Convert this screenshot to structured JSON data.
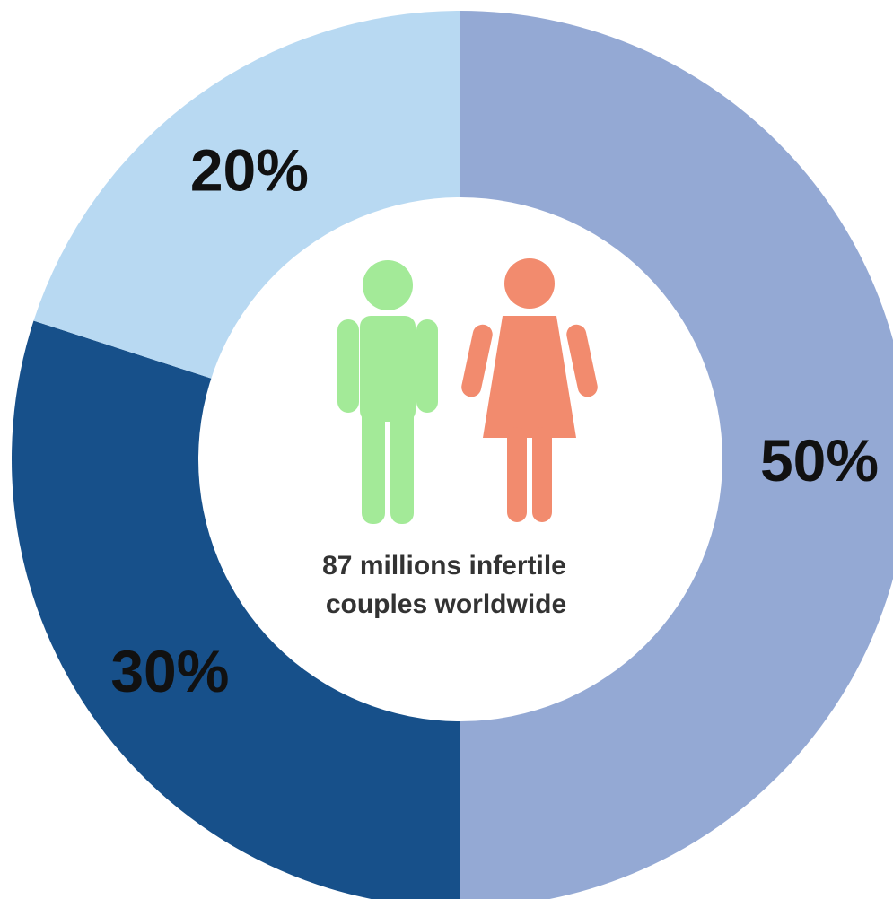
{
  "chart_data": {
    "type": "pie",
    "style": "donut",
    "slices": [
      {
        "label": "50%",
        "value": 50,
        "color": "#94A9D4"
      },
      {
        "label": "30%",
        "value": 30,
        "color": "#17508A"
      },
      {
        "label": "20%",
        "value": 20,
        "color": "#B8D9F2"
      }
    ],
    "start_angle_deg": 0,
    "direction": "clockwise",
    "center_text": {
      "line1": "87 millions infertile",
      "line2": "couples worldwide"
    },
    "center_icons": [
      {
        "icon": "male-figure-icon",
        "color": "#A3EA98"
      },
      {
        "icon": "female-figure-icon",
        "color": "#F28B6E"
      }
    ]
  }
}
